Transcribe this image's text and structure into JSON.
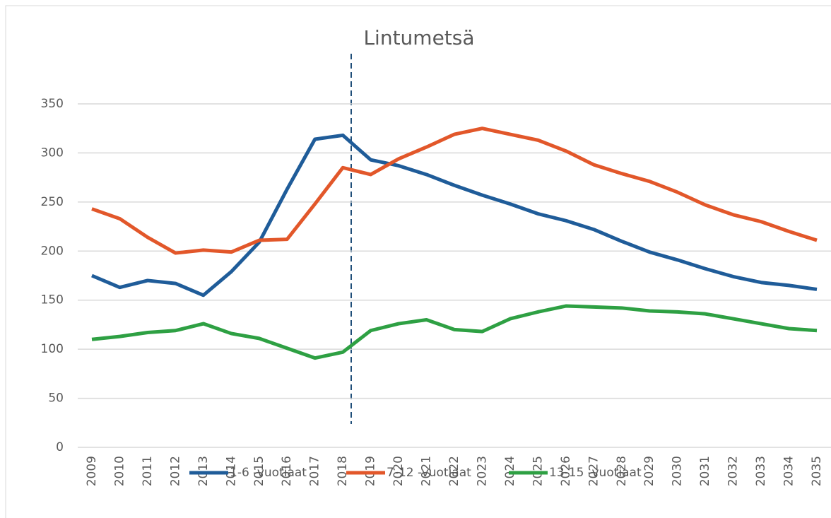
{
  "chart_data": {
    "type": "line",
    "title": "Lintumetsä",
    "categories": [
      "2009",
      "2010",
      "2011",
      "2012",
      "2013",
      "2014",
      "2015",
      "2016",
      "2017",
      "2018",
      "2019",
      "2020",
      "2021",
      "2022",
      "2023",
      "2024",
      "2025",
      "2026",
      "2027",
      "2028",
      "2029",
      "2030",
      "2031",
      "2032",
      "2033",
      "2034",
      "2035"
    ],
    "series": [
      {
        "name": "1-6 -vuotiaat",
        "color": "#1f5c99",
        "values": [
          175,
          163,
          170,
          167,
          155,
          179,
          209,
          263,
          314,
          318,
          293,
          287,
          278,
          267,
          257,
          248,
          238,
          231,
          222,
          210,
          199,
          191,
          182,
          174,
          168,
          165,
          161
        ]
      },
      {
        "name": "7-12 -vuotiaat",
        "color": "#e2572a",
        "values": [
          243,
          233,
          214,
          198,
          201,
          199,
          211,
          212,
          248,
          285,
          278,
          294,
          306,
          319,
          325,
          319,
          313,
          302,
          288,
          279,
          271,
          260,
          247,
          237,
          230,
          220,
          211
        ]
      },
      {
        "name": "13-15 -vuotiaat",
        "color": "#2ea043",
        "values": [
          110,
          113,
          117,
          119,
          126,
          116,
          111,
          101,
          91,
          97,
          119,
          126,
          130,
          120,
          118,
          131,
          138,
          144,
          143,
          142,
          139,
          138,
          136,
          131,
          126,
          121,
          119
        ]
      }
    ],
    "ylim": [
      0,
      350
    ],
    "yticks": [
      0,
      50,
      100,
      150,
      200,
      250,
      300,
      350
    ],
    "grid": true
  }
}
